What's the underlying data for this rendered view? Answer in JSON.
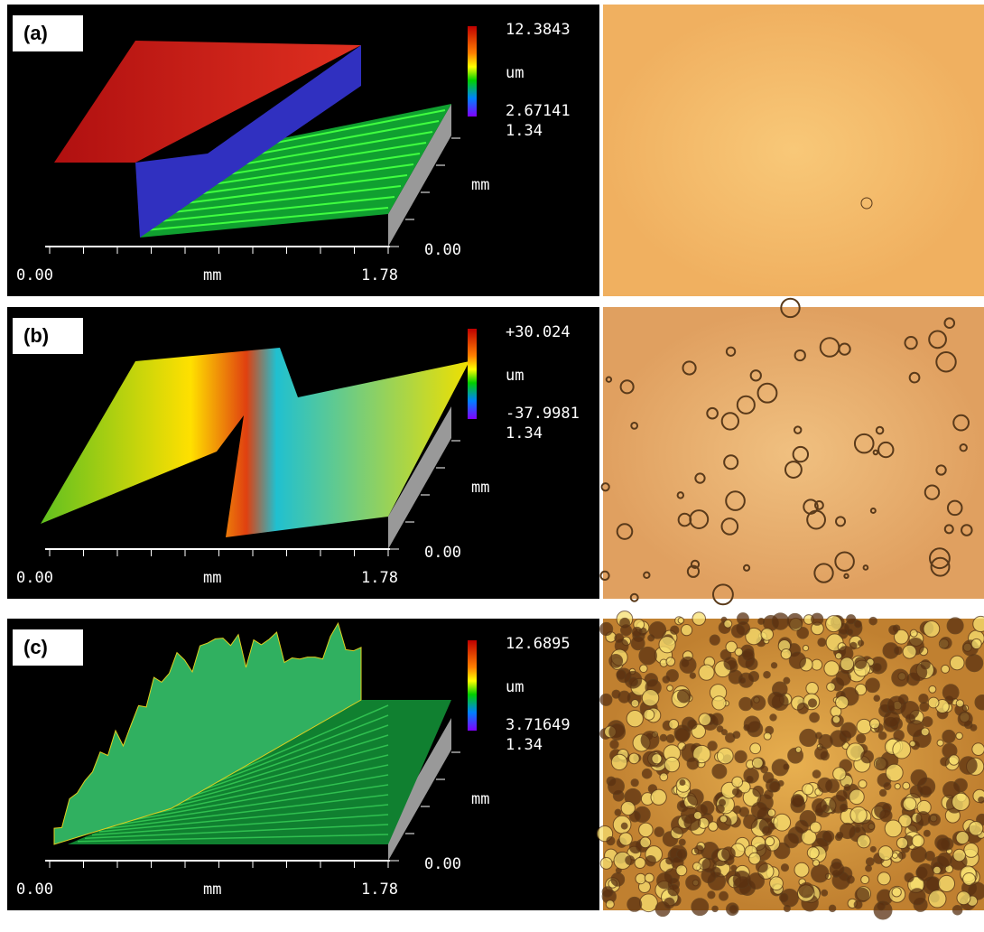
{
  "panels": [
    {
      "label": "(a)",
      "colorbar": {
        "max": "12.3843",
        "unit": "um",
        "min": "2.67141"
      },
      "y_axis": {
        "max": "1.34",
        "unit": "mm",
        "min": "0.00"
      },
      "x_axis": {
        "min": "0.00",
        "unit": "mm",
        "max": "1.78"
      }
    },
    {
      "label": "(b)",
      "colorbar": {
        "max": "+30.024",
        "unit": "um",
        "min": "-37.9981"
      },
      "y_axis": {
        "max": "1.34",
        "unit": "mm",
        "min": "0.00"
      },
      "x_axis": {
        "min": "0.00",
        "unit": "mm",
        "max": "1.78"
      }
    },
    {
      "label": "(c)",
      "colorbar": {
        "max": "12.6895",
        "unit": "um",
        "min": "3.71649"
      },
      "y_axis": {
        "max": "1.34",
        "unit": "mm",
        "min": "0.00"
      },
      "x_axis": {
        "min": "0.00",
        "unit": "mm",
        "max": "1.78"
      }
    }
  ]
}
